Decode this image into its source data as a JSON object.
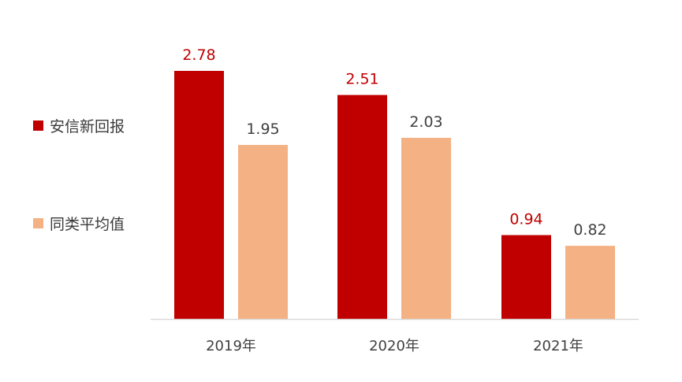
{
  "chart_data": {
    "type": "bar",
    "categories": [
      "2019年",
      "2020年",
      "2021年"
    ],
    "series": [
      {
        "name": "安信新回报",
        "values": [
          2.78,
          2.51,
          0.94
        ],
        "color": "#C00000",
        "label_color": "#C00000"
      },
      {
        "name": "同类平均值",
        "values": [
          1.95,
          2.03,
          0.82
        ],
        "color": "#F4B183",
        "label_color": "#404040"
      }
    ],
    "value_labels": [
      [
        "2.78",
        "2.51",
        "0.94"
      ],
      [
        "1.95",
        "2.03",
        "0.82"
      ]
    ],
    "ylim": [
      0,
      2.78
    ],
    "grid": false,
    "legend_position": "left",
    "axis_color": "#D9D9D9"
  }
}
